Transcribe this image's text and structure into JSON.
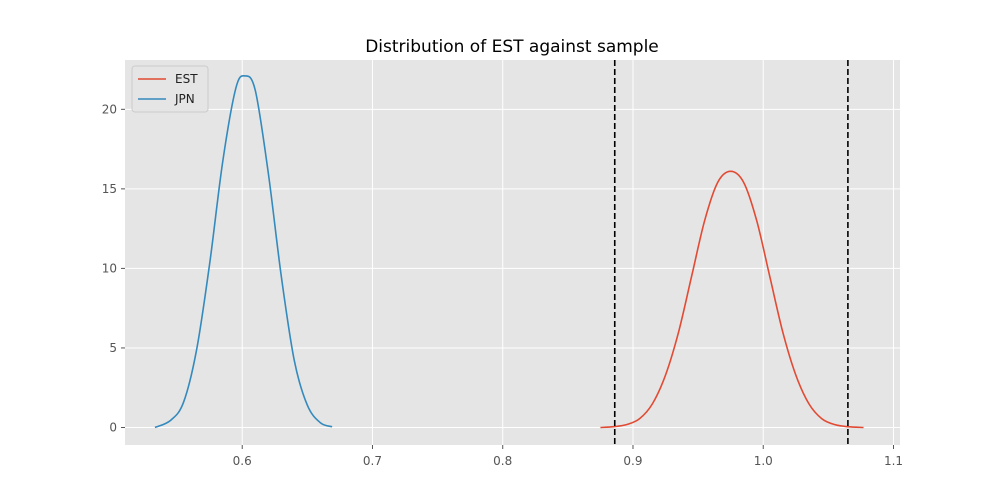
{
  "chart_data": {
    "type": "line",
    "title": "Distribution of EST against sample",
    "xlabel": "",
    "ylabel": "",
    "xlim": [
      0.51,
      1.105
    ],
    "ylim": [
      -1.1,
      23.1
    ],
    "xticks": [
      0.6,
      0.7,
      0.8,
      0.9,
      1.0,
      1.1
    ],
    "xtick_labels": [
      "0.6",
      "0.7",
      "0.8",
      "0.9",
      "1.0",
      "1.1"
    ],
    "yticks": [
      0,
      5,
      10,
      15,
      20
    ],
    "ytick_labels": [
      "0",
      "5",
      "10",
      "15",
      "20"
    ],
    "grid": true,
    "legend_position": "top-left",
    "series": [
      {
        "name": "EST",
        "color": "#E24A33",
        "x": [
          0.875,
          0.885,
          0.895,
          0.905,
          0.915,
          0.925,
          0.935,
          0.945,
          0.955,
          0.965,
          0.975,
          0.985,
          0.995,
          1.005,
          1.015,
          1.025,
          1.035,
          1.045,
          1.055,
          1.065,
          1.077
        ],
        "y": [
          0.0,
          0.05,
          0.18,
          0.55,
          1.5,
          3.3,
          6.0,
          9.5,
          13.0,
          15.4,
          16.1,
          15.4,
          13.0,
          9.5,
          6.0,
          3.3,
          1.5,
          0.55,
          0.18,
          0.05,
          0.0
        ]
      },
      {
        "name": "JPN",
        "color": "#348ABD",
        "x": [
          0.533,
          0.545,
          0.555,
          0.565,
          0.575,
          0.585,
          0.595,
          0.602,
          0.61,
          0.62,
          0.63,
          0.64,
          0.65,
          0.66,
          0.669
        ],
        "y": [
          0.0,
          0.45,
          1.6,
          4.9,
          10.3,
          16.7,
          21.3,
          22.1,
          21.2,
          16.0,
          9.5,
          4.2,
          1.4,
          0.3,
          0.05
        ]
      }
    ],
    "reference_lines": [
      {
        "x": 0.886,
        "color": "#000000",
        "style": "dashed"
      },
      {
        "x": 1.065,
        "color": "#000000",
        "style": "dashed"
      }
    ]
  }
}
